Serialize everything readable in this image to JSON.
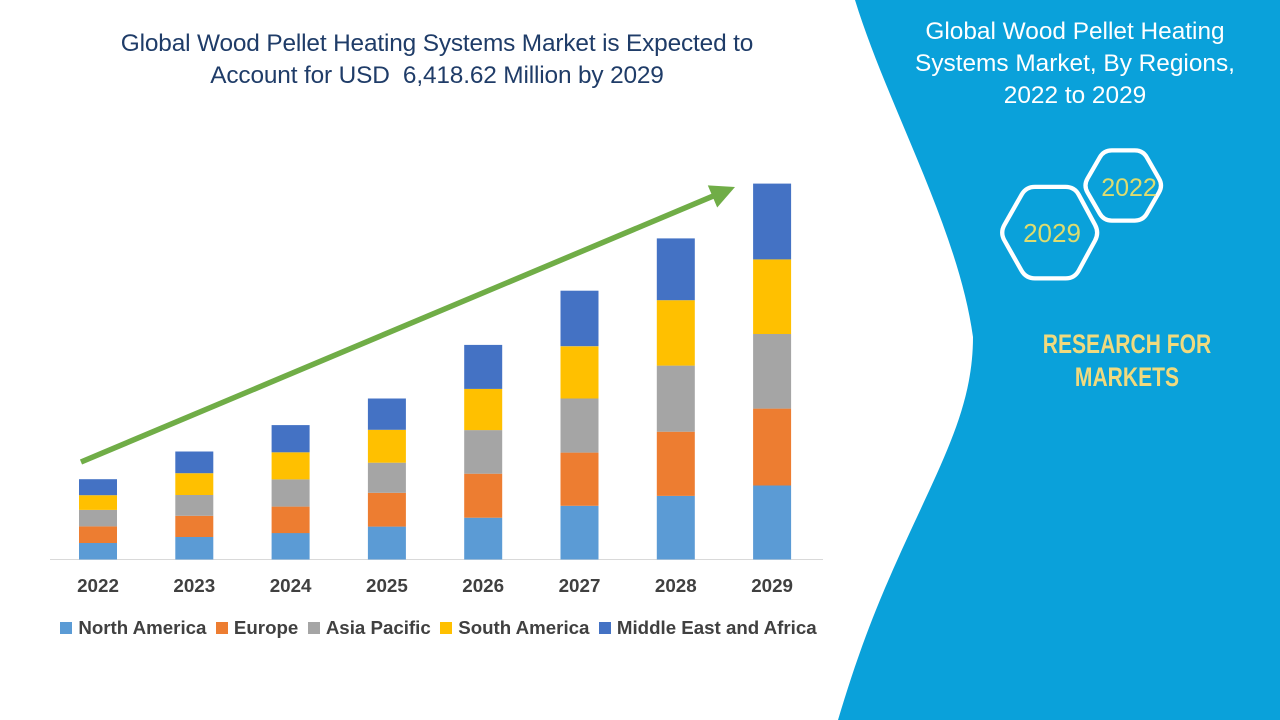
{
  "main_title": {
    "line1": "Global Wood Pellet Heating Systems Market is Expected to",
    "line2": "Account for USD  6,418.62 Million by 2029"
  },
  "side_panel": {
    "title_line1": "Global Wood Pellet Heating",
    "title_line2": "Systems Market, By Regions,",
    "title_line3": "2022 to 2029",
    "hexagon_top_label": "2022",
    "hexagon_bottom_label": "2029",
    "brand_line1": "RESEARCH FOR",
    "brand_line2": "MARKETS"
  },
  "colors": {
    "background": "#ffffff",
    "panel_blue": "#0aa1da",
    "title_navy": "#1f3c68",
    "axis_text": "#404040",
    "legend_text": "#404040",
    "axis_line": "#d9d9d9",
    "arrow_green": "#70ad47",
    "hexagon_stroke": "#ffffff",
    "hexagon_year_text": "#dedc6f",
    "brand_text": "#f0da7e",
    "panel_text": "#ffffff"
  },
  "chart_data": {
    "type": "bar",
    "stacked": true,
    "title": "Global Wood Pellet Heating Systems Market is Expected to Account for USD 6,418.62 Million by 2029",
    "unit": "USD Million",
    "xlabel": "",
    "ylabel": "",
    "ylim": [
      0,
      6600
    ],
    "grid": false,
    "legend_position": "bottom",
    "annotation": "upward trend arrow",
    "categories": [
      "2022",
      "2023",
      "2024",
      "2025",
      "2026",
      "2027",
      "2028",
      "2029"
    ],
    "series": [
      {
        "name": "North America",
        "color": "#5b9bd5",
        "values": [
          282,
          384,
          452,
          562,
          714,
          917,
          1086,
          1263
        ]
      },
      {
        "name": "Europe",
        "color": "#ed7d31",
        "values": [
          283,
          362,
          452,
          577,
          751,
          908,
          1096,
          1313
        ]
      },
      {
        "name": "Asia Pacific",
        "color": "#a5a5a5",
        "values": [
          282,
          355,
          464,
          514,
          744,
          925,
          1129,
          1274
        ]
      },
      {
        "name": "South America",
        "color": "#ffc000",
        "values": [
          251,
          372,
          463,
          562,
          705,
          891,
          1117,
          1274
        ]
      },
      {
        "name": "Middle East and Africa",
        "color": "#4472c4",
        "values": [
          273,
          371,
          464,
          534,
          751,
          948,
          1055,
          1294.62
        ]
      }
    ],
    "totals": [
      1371,
      1844,
      2295,
      2749,
      3665,
      4589,
      5483,
      6418.62
    ]
  }
}
